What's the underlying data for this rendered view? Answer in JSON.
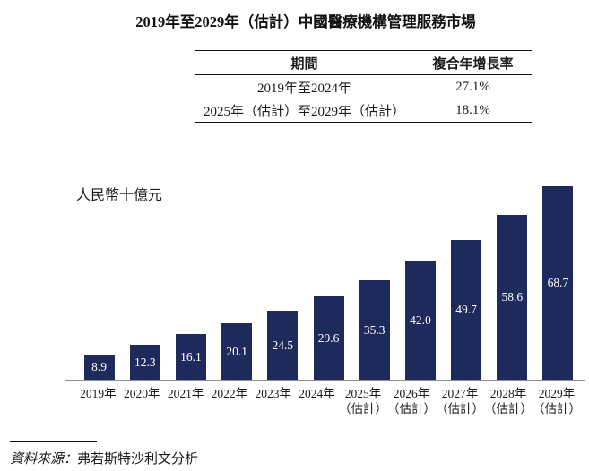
{
  "title": "2019年至2029年（估計）中國醫療機構管理服務市場",
  "cagr_table": {
    "columns": [
      "期間",
      "複合年增長率"
    ],
    "rows": [
      {
        "period": "2019年至2024年",
        "cagr": "27.1%"
      },
      {
        "period": "2025年（估計）至2029年（估計）",
        "cagr": "18.1%"
      }
    ]
  },
  "chart_data": {
    "type": "bar",
    "title": "2019年至2029年（估計）中國醫療機構管理服務市場",
    "ylabel": "人民幣十億元",
    "xlabel": "",
    "categories": [
      "2019年",
      "2020年",
      "2021年",
      "2022年",
      "2023年",
      "2024年",
      "2025年（估計）",
      "2026年（估計）",
      "2027年（估計）",
      "2028年（估計）",
      "2029年（估計）"
    ],
    "values": [
      8.9,
      12.3,
      16.1,
      20.1,
      24.5,
      29.6,
      35.3,
      42.0,
      49.7,
      58.6,
      68.7
    ],
    "value_labels": [
      "8.9",
      "12.3",
      "16.1",
      "20.1",
      "24.5",
      "29.6",
      "35.3",
      "42.0",
      "49.7",
      "58.6",
      "68.7"
    ],
    "ylim": [
      0,
      70
    ],
    "grid": false,
    "legend": false,
    "bar_color": "#1F2A5C",
    "value_label_color": "#FFFFFF",
    "axis_line_color": "#8F8F8F"
  },
  "source": {
    "prefix": "資料來源：",
    "text": "弗若斯特沙利文分析"
  }
}
